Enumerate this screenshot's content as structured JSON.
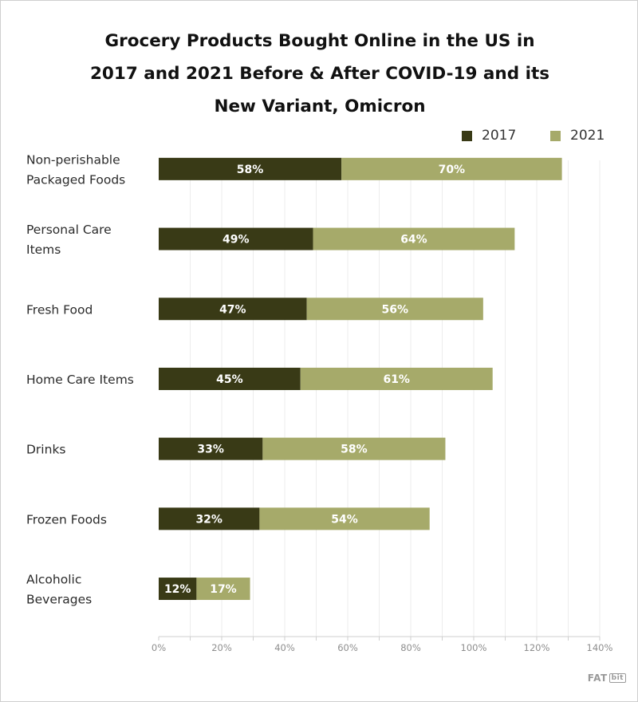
{
  "chart_data": {
    "type": "bar",
    "orientation": "horizontal",
    "stacked": true,
    "title_lines": [
      "Grocery Products Bought Online in the US in",
      "2017 and 2021 Before & After COVID-19 and its",
      "New Variant, Omicron"
    ],
    "categories": [
      [
        "Non-perishable",
        "Packaged Foods"
      ],
      [
        "Personal Care",
        "Items"
      ],
      [
        "Fresh Food"
      ],
      [
        "Home Care Items"
      ],
      [
        "Drinks"
      ],
      [
        "Frozen Foods"
      ],
      [
        "Alcoholic",
        "Beverages"
      ]
    ],
    "series": [
      {
        "name": "2017",
        "color": "#393a16",
        "values": [
          58,
          49,
          47,
          45,
          33,
          32,
          12
        ]
      },
      {
        "name": "2021",
        "color": "#a6aa6a",
        "values": [
          70,
          64,
          56,
          61,
          58,
          54,
          17
        ]
      }
    ],
    "value_suffix": "%",
    "xlim": [
      0,
      140
    ],
    "xticks": [
      0,
      20,
      40,
      60,
      80,
      100,
      120,
      140
    ],
    "grid": true,
    "legend": "top-right",
    "xlabel": "",
    "ylabel": ""
  },
  "brand": {
    "logo_text": "FAT",
    "logo_badge": "bit",
    "logo_color": "#9a9a9a"
  }
}
